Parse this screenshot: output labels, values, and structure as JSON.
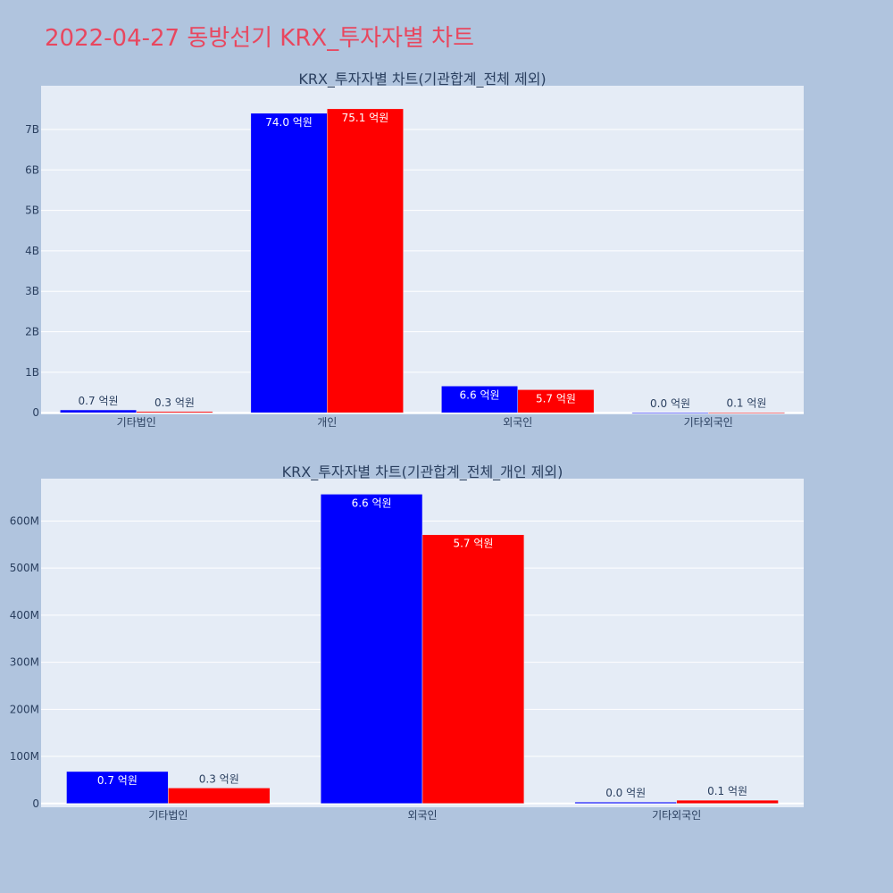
{
  "page_title": "2022-04-27 동방선기 KRX_투자자별 차트",
  "colors": {
    "buy": "#0000ff",
    "sell": "#ff0000",
    "plot_bg": "#e5ecf6",
    "page_bg": "#b0c4de",
    "title": "#e8475f"
  },
  "chart_data": [
    {
      "type": "bar",
      "title": "KRX_투자자별 차트(기관합계_전체 제외)",
      "categories": [
        "기타법인",
        "개인",
        "외국인",
        "기타외국인"
      ],
      "series": [
        {
          "color": "#0000ff",
          "values": [
            70000000,
            7400000000,
            660000000,
            3000000
          ],
          "labels": [
            "0.7 억원",
            "74.0 억원",
            "6.6 억원",
            "0.0 억원"
          ]
        },
        {
          "color": "#ff0000",
          "values": [
            30000000,
            7510000000,
            570000000,
            10000000
          ],
          "labels": [
            "0.3 억원",
            "75.1 억원",
            "5.7 억원",
            "0.1 억원"
          ]
        }
      ],
      "ylim": [
        -40000000,
        8080000000
      ],
      "yticks": [
        0,
        1000000000,
        2000000000,
        3000000000,
        4000000000,
        5000000000,
        6000000000,
        7000000000
      ],
      "ytick_labels": [
        "0",
        "1B",
        "2B",
        "3B",
        "4B",
        "5B",
        "6B",
        "7B"
      ],
      "grid": true
    },
    {
      "type": "bar",
      "title": "KRX_투자자별 차트(기관합계_전체_개인 제외)",
      "categories": [
        "기타법인",
        "외국인",
        "기타외국인"
      ],
      "series": [
        {
          "color": "#0000ff",
          "values": [
            68000000,
            657000000,
            3000000
          ],
          "labels": [
            "0.7 억원",
            "6.6 억원",
            "0.0 억원"
          ]
        },
        {
          "color": "#ff0000",
          "values": [
            33000000,
            571000000,
            7000000
          ],
          "labels": [
            "0.3 억원",
            "5.7 억원",
            "0.1 억원"
          ]
        }
      ],
      "ylim": [
        -8000000,
        690000000
      ],
      "yticks": [
        0,
        100000000,
        200000000,
        300000000,
        400000000,
        500000000,
        600000000
      ],
      "ytick_labels": [
        "0",
        "100M",
        "200M",
        "300M",
        "400M",
        "500M",
        "600M"
      ],
      "grid": true
    }
  ]
}
